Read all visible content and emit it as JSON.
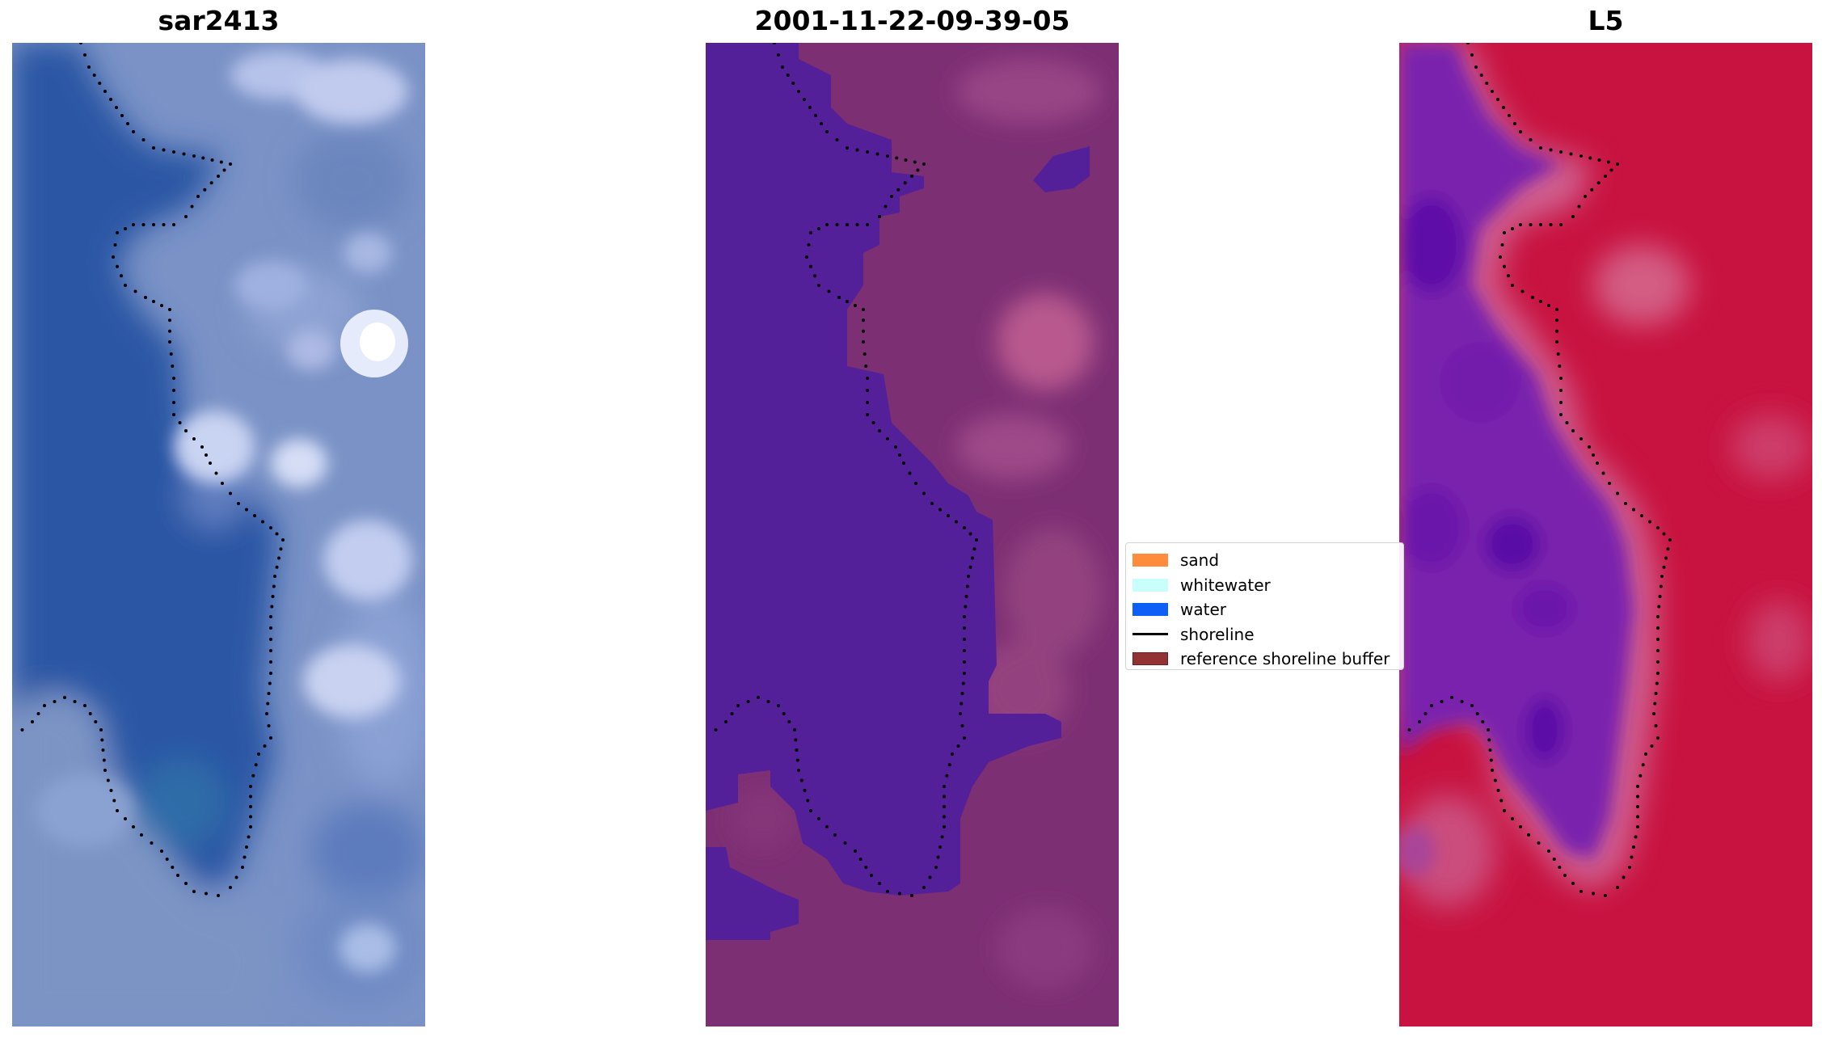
{
  "panels": [
    {
      "title": "sar2413"
    },
    {
      "title": "2001-11-22-09-39-05"
    },
    {
      "title": "L5"
    }
  ],
  "legend": {
    "items": [
      {
        "label": "sand",
        "color": "#ff8c3c",
        "kind": "patch"
      },
      {
        "label": "whitewater",
        "color": "#c8fffa",
        "kind": "patch"
      },
      {
        "label": "water",
        "color": "#0d5ff5",
        "kind": "patch"
      },
      {
        "label": "shoreline",
        "color": "#000000",
        "kind": "line"
      },
      {
        "label": "reference shoreline buffer",
        "color": "#923232",
        "kind": "patch"
      }
    ]
  },
  "colors": {
    "rgb_water": "#2f5aa6",
    "rgb_land": "#7d93c6",
    "class_water": "#54219a",
    "class_land": "#7e2e74",
    "ndwi_water": "#7a1fb0",
    "ndwi_land": "#c8103e",
    "shoreline": "#000000"
  }
}
